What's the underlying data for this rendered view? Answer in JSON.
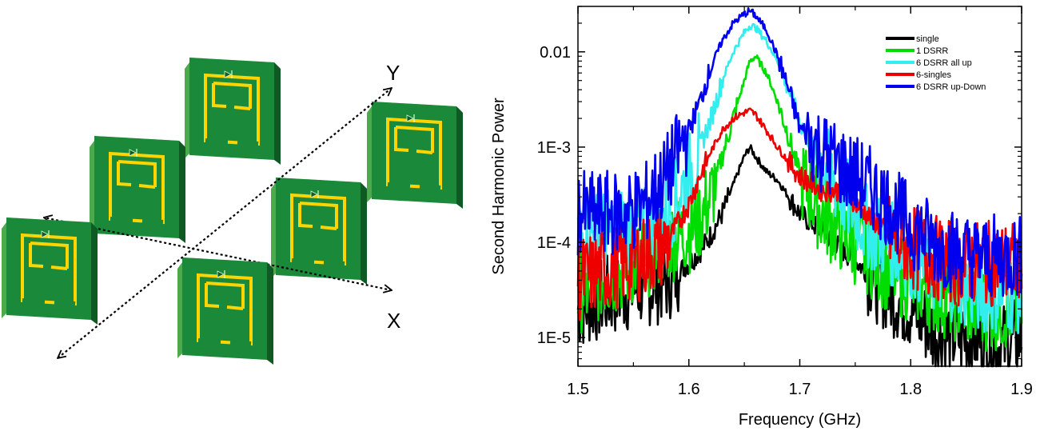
{
  "illustration": {
    "axis_x_label": "X",
    "axis_y_label": "Y"
  },
  "chart_data": {
    "type": "line",
    "title": "",
    "xlabel": "Frequency (GHz)",
    "ylabel": "Second Harmonic Power",
    "xlim": [
      1.5,
      1.9
    ],
    "ylim": [
      5e-06,
      0.03
    ],
    "yscale": "log",
    "grid": false,
    "legend_position": "top-right",
    "x_ticks": [
      1.5,
      1.6,
      1.7,
      1.8,
      1.9
    ],
    "x_tick_labels": [
      "1.5",
      "1.6",
      "1.7",
      "1.8",
      "1.9"
    ],
    "y_ticks": [
      1e-05,
      0.0001,
      0.001,
      0.01
    ],
    "y_tick_labels": [
      "1E-5",
      "1E-4",
      "1E-3",
      "0.01"
    ],
    "x": [
      1.5,
      1.52,
      1.54,
      1.56,
      1.58,
      1.6,
      1.61,
      1.62,
      1.63,
      1.64,
      1.65,
      1.655,
      1.66,
      1.67,
      1.68,
      1.69,
      1.7,
      1.72,
      1.74,
      1.76,
      1.78,
      1.8,
      1.82,
      1.84,
      1.86,
      1.88,
      1.9
    ],
    "series": [
      {
        "name": "single",
        "color": "#000000",
        "values": [
          2e-05,
          2.5e-05,
          3e-05,
          3.5e-05,
          4e-05,
          6e-05,
          8e-05,
          0.00012,
          0.0002,
          0.0004,
          0.0008,
          0.001,
          0.0008,
          0.00055,
          0.00045,
          0.0003,
          0.0002,
          0.00013,
          8e-05,
          5e-05,
          3e-05,
          2e-05,
          1.2e-05,
          1e-05,
          1e-05,
          8e-06,
          1e-05
        ]
      },
      {
        "name": "1 DSRR",
        "color": "#00dd00",
        "values": [
          3e-05,
          4e-05,
          5e-05,
          7e-05,
          0.0001,
          0.00013,
          0.00018,
          0.0003,
          0.0008,
          0.002,
          0.005,
          0.008,
          0.009,
          0.006,
          0.003,
          0.0013,
          0.0005,
          0.0002,
          0.00012,
          8e-05,
          5e-05,
          4e-05,
          3e-05,
          2.5e-05,
          2e-05,
          2e-05,
          2e-05
        ]
      },
      {
        "name": "6 DSRR all up",
        "color": "#33eeee",
        "values": [
          0.00012,
          0.00013,
          0.00014,
          0.00015,
          0.0002,
          0.0005,
          0.001,
          0.002,
          0.005,
          0.01,
          0.016,
          0.019,
          0.018,
          0.013,
          0.008,
          0.004,
          0.0018,
          0.0007,
          0.0003,
          0.00015,
          0.0001,
          7e-05,
          5e-05,
          4e-05,
          3e-05,
          3e-05,
          3e-05
        ]
      },
      {
        "name": "6-singles",
        "color": "#ee0000",
        "values": [
          4e-05,
          5e-05,
          6e-05,
          7e-05,
          0.0001,
          0.00025,
          0.0005,
          0.0009,
          0.0015,
          0.002,
          0.0023,
          0.0024,
          0.0022,
          0.0015,
          0.001,
          0.0007,
          0.0005,
          0.00035,
          0.00035,
          0.0002,
          0.00012,
          9e-05,
          7e-05,
          6e-05,
          6e-05,
          6e-05,
          6e-05
        ]
      },
      {
        "name": "6 DSRR up-Down",
        "color": "#0000ee",
        "values": [
          0.0002,
          0.0002,
          0.0002,
          0.00025,
          0.0005,
          0.0015,
          0.003,
          0.007,
          0.013,
          0.02,
          0.025,
          0.027,
          0.024,
          0.017,
          0.009,
          0.004,
          0.0016,
          0.0009,
          0.0006,
          0.0004,
          0.00025,
          0.00015,
          0.0001,
          8e-05,
          7e-05,
          7e-05,
          7e-05
        ]
      }
    ]
  }
}
